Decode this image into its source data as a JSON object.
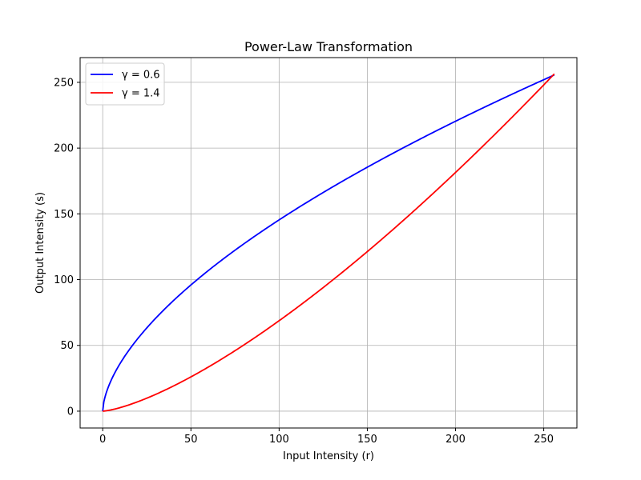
{
  "chart_data": {
    "type": "line",
    "title": "Power-Law Transformation",
    "xlabel": "Input Intensity (r)",
    "ylabel": "Output Intensity (s)",
    "xlim": [
      -12.8,
      268.8
    ],
    "ylim": [
      -12.8,
      268.8
    ],
    "xticks": [
      0,
      50,
      100,
      150,
      200,
      250
    ],
    "yticks": [
      0,
      50,
      100,
      150,
      200,
      250
    ],
    "grid": true,
    "legend_position": "top-left",
    "x_range": [
      0,
      256
    ],
    "series": [
      {
        "name": "γ = 0.6",
        "gamma": 0.6,
        "color": "#0000ff"
      },
      {
        "name": "γ = 1.4",
        "gamma": 1.4,
        "color": "#ff0000"
      }
    ]
  }
}
